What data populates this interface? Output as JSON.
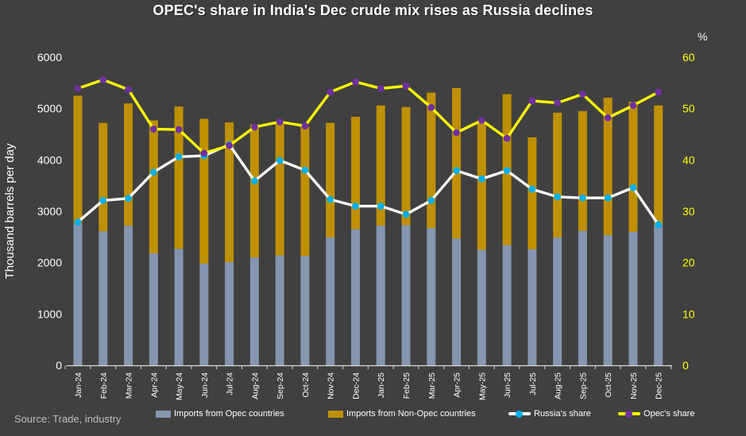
{
  "title": "OPEC's share in India's Dec crude mix rises as Russia declines",
  "source": "Source: Trade, industry",
  "axes": {
    "left_title": "Thousand barrels per day",
    "right_unit": "%",
    "left_ticks": [
      0,
      1000,
      2000,
      3000,
      4000,
      5000,
      6000
    ],
    "right_ticks": [
      0,
      10,
      20,
      30,
      40,
      50,
      60
    ]
  },
  "colors": {
    "background": "#404040",
    "opec_bar": "#8496B0",
    "non_opec_bar": "#BF9000",
    "russia_line": "#FFFFFF",
    "russia_marker": "#00B0F0",
    "opec_line": "#FFFF00",
    "opec_marker": "#7030A0",
    "axis_line": "#D9D9D9",
    "left_axis_text": "#FFFFFF",
    "right_axis_text": "#FFFF00",
    "source_text": "#BFBFBF"
  },
  "legend": {
    "items": [
      {
        "label": "Imports from Opec countries",
        "swatch": "bar",
        "color": "#8496B0"
      },
      {
        "label": "Imports from Non-Opec countries",
        "swatch": "bar",
        "color": "#BF9000"
      },
      {
        "label": "Russia's share",
        "swatch": "line",
        "color": "#FFFFFF",
        "marker": "#00B0F0"
      },
      {
        "label": "Opec's share",
        "swatch": "line",
        "color": "#FFFF00",
        "marker": "#7030A0"
      }
    ]
  },
  "chart_data": {
    "type": "combo-stacked-bar-line",
    "categories": [
      "Jan-24",
      "Feb-24",
      "Mar-24",
      "Apr-24",
      "May-24",
      "Jun-24",
      "Jul-24",
      "Aug-24",
      "Sep-24",
      "Oct-24",
      "Nov-24",
      "Dec-24",
      "Jan-25",
      "Feb-25",
      "Mar-25",
      "Apr-25",
      "May-25",
      "Jun-25",
      "Jul-25",
      "Aug-25",
      "Sep-25",
      "Oct-25",
      "Nov-25",
      "Dec-25"
    ],
    "series": [
      {
        "name": "Imports from Opec countries",
        "type": "bar",
        "stack": "imports",
        "axis": "left",
        "color": "#8496B0",
        "values": [
          2750,
          2610,
          2720,
          2180,
          2270,
          1980,
          2010,
          2100,
          2140,
          2130,
          2490,
          2650,
          2720,
          2730,
          2670,
          2470,
          2250,
          2340,
          2260,
          2490,
          2620,
          2530,
          2600,
          2740
        ]
      },
      {
        "name": "Imports from Non-Opec countries",
        "type": "bar",
        "stack": "imports",
        "axis": "left",
        "color": "#BF9000",
        "values": [
          2500,
          2110,
          2380,
          2590,
          2770,
          2820,
          2720,
          2590,
          2560,
          2520,
          2230,
          2190,
          2340,
          2300,
          2640,
          2930,
          2480,
          2940,
          2180,
          2430,
          2330,
          2680,
          2530,
          2320
        ]
      },
      {
        "name": "Russia's share",
        "type": "line",
        "axis": "right",
        "color": "#FFFFFF",
        "marker_color": "#00B0F0",
        "values": [
          27.9,
          32.1,
          32.5,
          37.6,
          40.6,
          40.8,
          43.0,
          35.9,
          39.9,
          38.0,
          32.3,
          31.0,
          31.0,
          29.4,
          32.1,
          37.9,
          36.3,
          37.9,
          34.3,
          32.8,
          32.6,
          32.6,
          34.6,
          27.4
        ]
      },
      {
        "name": "Opec's share",
        "type": "line",
        "axis": "right",
        "color": "#FFFF00",
        "marker_color": "#7030A0",
        "values": [
          53.9,
          55.6,
          53.7,
          46.0,
          45.9,
          41.3,
          42.8,
          46.4,
          47.4,
          46.6,
          53.2,
          55.2,
          53.9,
          54.4,
          50.2,
          45.3,
          47.7,
          44.2,
          51.5,
          51.1,
          52.8,
          48.2,
          50.6,
          53.2
        ]
      }
    ],
    "title": "OPEC's share in India's Dec crude mix rises as Russia declines",
    "xlabel": "",
    "ylabel": "Thousand barrels per day",
    "y2label": "%",
    "ylim": [
      0,
      6000
    ],
    "y2lim": [
      0,
      60
    ],
    "grid": false,
    "legend_position": "bottom"
  }
}
